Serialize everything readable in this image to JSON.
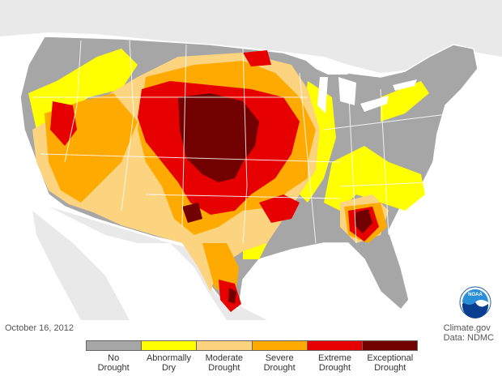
{
  "map": {
    "date": "October 16, 2012",
    "credit_line1": "Climate.gov",
    "credit_line2": "Data: NDMC",
    "logo_text": "NOAA",
    "colors": {
      "ocean": "#ffffff",
      "foreign_land": "#e9e9e9",
      "border": "#ffffff"
    }
  },
  "legend": [
    {
      "line1": "No",
      "line2": "Drought",
      "color": "#a6a6a6"
    },
    {
      "line1": "Abnormally",
      "line2": "Dry",
      "color": "#ffff00"
    },
    {
      "line1": "Moderate",
      "line2": "Drought",
      "color": "#fcd37f"
    },
    {
      "line1": "Severe",
      "line2": "Drought",
      "color": "#ffaa00"
    },
    {
      "line1": "Extreme",
      "line2": "Drought",
      "color": "#e60000"
    },
    {
      "line1": "Exceptional",
      "line2": "Drought",
      "color": "#730000"
    }
  ]
}
